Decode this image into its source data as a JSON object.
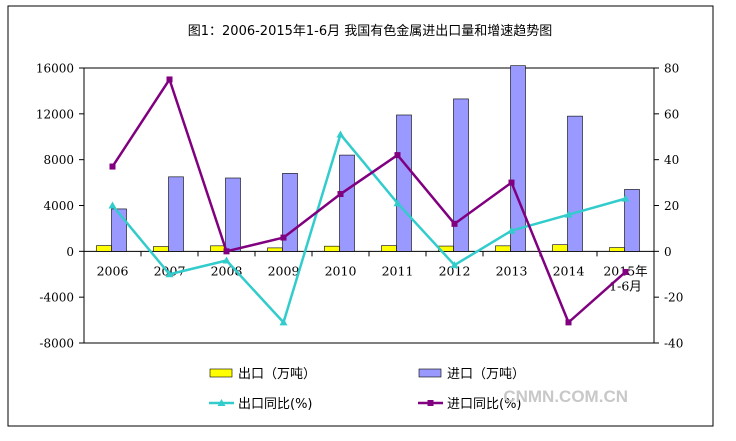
{
  "chart_data": {
    "type": "bar+line",
    "title": "图1：2006-2015年1-6月 我国有色金属进出口量和增速趋势图",
    "categories": [
      "2006",
      "2007",
      "2008",
      "2009",
      "2010",
      "2011",
      "2012",
      "2013",
      "2014",
      "2015年\n1-6月"
    ],
    "left_axis": {
      "ylim": [
        -8000,
        16000
      ],
      "ticks": [
        -8000,
        -4000,
        0,
        4000,
        8000,
        12000,
        16000
      ]
    },
    "right_axis": {
      "ylim": [
        -40,
        80
      ],
      "ticks": [
        -40,
        -20,
        0,
        20,
        40,
        60,
        80
      ]
    },
    "bar_series": [
      {
        "name": "出口（万吨）",
        "color": "#ffff00",
        "values": [
          500,
          420,
          480,
          300,
          450,
          500,
          460,
          480,
          580,
          330
        ]
      },
      {
        "name": "进口（万吨）",
        "color": "#9999ff",
        "values": [
          3700,
          6500,
          6400,
          6800,
          8400,
          11900,
          13300,
          16200,
          11800,
          5400
        ]
      }
    ],
    "line_series": [
      {
        "name": "出口同比(%)",
        "color": "#33cccc",
        "marker": "triangle",
        "values": [
          20,
          -10,
          -4,
          -31,
          51,
          21,
          -6,
          9,
          16,
          23
        ]
      },
      {
        "name": "进口同比(%)",
        "color": "#800080",
        "marker": "square",
        "values": [
          37,
          75,
          0,
          6,
          25,
          42,
          12,
          30,
          -31,
          -9
        ]
      }
    ]
  },
  "watermark": "CNMN.COM.CN",
  "colors": {
    "border": "#000000",
    "background": "#ffffff"
  }
}
